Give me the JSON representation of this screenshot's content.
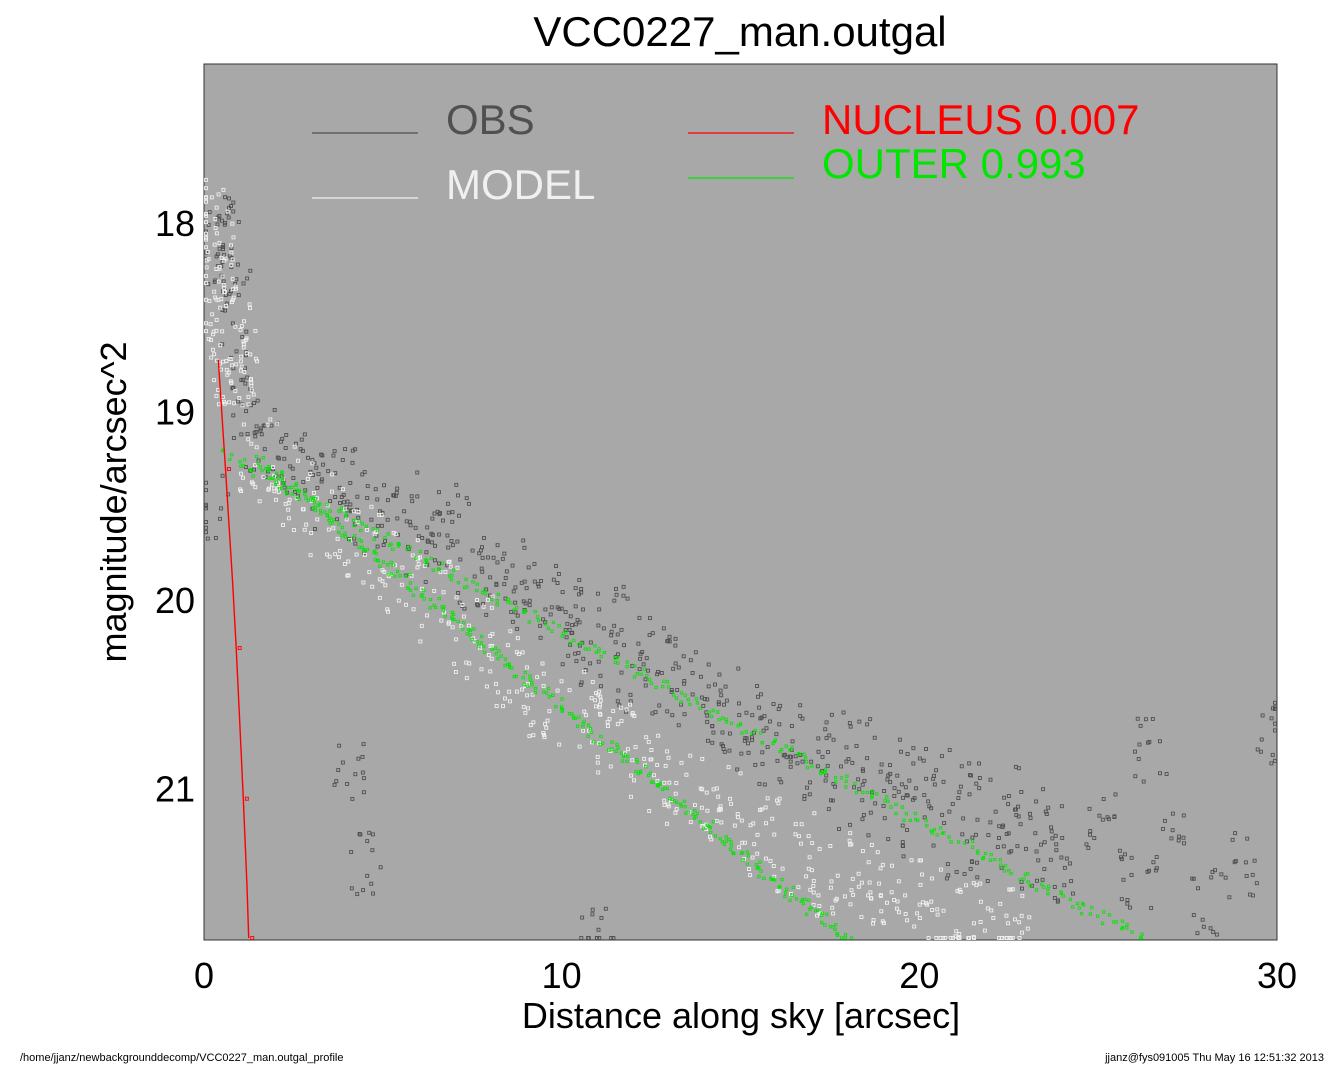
{
  "footer": {
    "path": "/home/jjanz/newbackgrounddecomp/VCC0227_man.outgal_profile",
    "stamp": "jjanz@fys091005  Thu May 16 12:51:32 2013"
  },
  "colors": {
    "plot_bg": "#a8a8a8",
    "obs": "#505050",
    "model": "#f0f0f0",
    "nucleus": "#ff0000",
    "outer": "#00e600"
  },
  "chart_data": {
    "type": "scatter",
    "title": "VCC0227_man.outgal",
    "xlabel": "Distance along sky [arcsec]",
    "ylabel": "magnitude/arcsec^2",
    "xlim": [
      0,
      30
    ],
    "ylim": [
      21.8,
      17.15
    ],
    "y_inverted": true,
    "x_ticks": [
      "0",
      "10",
      "20",
      "30"
    ],
    "y_ticks": [
      "18",
      "19",
      "20",
      "21"
    ],
    "grid": false,
    "legend": {
      "placement": "top",
      "items": [
        {
          "label": "OBS",
          "color": "#505050"
        },
        {
          "label": "MODEL",
          "color": "#f0f0f0"
        },
        {
          "label": "NUCLEUS  0.007",
          "color": "#ff0000"
        },
        {
          "label": "OUTER  0.993",
          "color": "#00e600"
        }
      ]
    },
    "series": [
      {
        "name": "OBS",
        "marker": "square",
        "points": [
          [
            0.35,
            18.05
          ],
          [
            0.5,
            18.0
          ],
          [
            0.6,
            18.3
          ],
          [
            0.8,
            18.25
          ],
          [
            1.0,
            18.7
          ],
          [
            1.2,
            19.0
          ],
          [
            0.25,
            19.5
          ],
          [
            1.5,
            19.15
          ],
          [
            2,
            19.2
          ],
          [
            2.5,
            19.3
          ],
          [
            3,
            19.25
          ],
          [
            3.5,
            19.45
          ],
          [
            4,
            19.35
          ],
          [
            4.5,
            19.6
          ],
          [
            5,
            19.55
          ],
          [
            5.5,
            19.45
          ],
          [
            6,
            19.75
          ],
          [
            6.5,
            19.7
          ],
          [
            7,
            19.55
          ],
          [
            7.5,
            19.9
          ],
          [
            8,
            19.8
          ],
          [
            8.5,
            19.85
          ],
          [
            9,
            20.05
          ],
          [
            9.5,
            19.95
          ],
          [
            10,
            20.2
          ],
          [
            10.5,
            20.05
          ],
          [
            11,
            20.3
          ],
          [
            11.5,
            20.1
          ],
          [
            12,
            20.45
          ],
          [
            12.5,
            20.25
          ],
          [
            13,
            20.5
          ],
          [
            13.5,
            20.35
          ],
          [
            14,
            20.6
          ],
          [
            14.5,
            20.5
          ],
          [
            15,
            20.75
          ],
          [
            15.5,
            20.6
          ],
          [
            16,
            20.85
          ],
          [
            16.5,
            20.7
          ],
          [
            17,
            20.95
          ],
          [
            17.5,
            20.75
          ],
          [
            18,
            21.05
          ],
          [
            18.5,
            20.8
          ],
          [
            19,
            21.1
          ],
          [
            19.5,
            20.9
          ],
          [
            20,
            21.2
          ],
          [
            20.5,
            20.95
          ],
          [
            21,
            21.3
          ],
          [
            21.5,
            21.0
          ],
          [
            22,
            21.35
          ],
          [
            22.5,
            21.05
          ],
          [
            23,
            21.4
          ],
          [
            23.5,
            21.15
          ],
          [
            24,
            21.45
          ],
          [
            25,
            21.2
          ],
          [
            26,
            21.5
          ],
          [
            27,
            21.3
          ],
          [
            28,
            21.6
          ],
          [
            29,
            21.4
          ],
          [
            29.9,
            20.7
          ],
          [
            26.5,
            20.8
          ],
          [
            4,
            20.9
          ],
          [
            4.5,
            21.4
          ],
          [
            11,
            21.8
          ]
        ]
      },
      {
        "name": "MODEL",
        "marker": "square",
        "points": [
          [
            0.25,
            17.95
          ],
          [
            0.4,
            18.2
          ],
          [
            0.55,
            18.4
          ],
          [
            0.7,
            18.55
          ],
          [
            0.85,
            18.75
          ],
          [
            1.0,
            18.9
          ],
          [
            1.5,
            19.25
          ],
          [
            2.5,
            19.4
          ],
          [
            3.5,
            19.55
          ],
          [
            4.5,
            19.7
          ],
          [
            5.5,
            19.85
          ],
          [
            6.5,
            20.0
          ],
          [
            7.5,
            20.2
          ],
          [
            8.5,
            20.35
          ],
          [
            9.5,
            20.5
          ],
          [
            10.5,
            20.6
          ],
          [
            11.5,
            20.75
          ],
          [
            12.5,
            20.9
          ],
          [
            13.5,
            21.0
          ],
          [
            14.5,
            21.1
          ],
          [
            15.5,
            21.25
          ],
          [
            16.5,
            21.35
          ],
          [
            17.5,
            21.45
          ],
          [
            18.5,
            21.5
          ],
          [
            19.5,
            21.6
          ],
          [
            20.5,
            21.65
          ],
          [
            21.5,
            21.7
          ],
          [
            22.5,
            21.75
          ]
        ]
      },
      {
        "name": "NUCLEUS  0.007",
        "marker": "line",
        "x": [
          0.4,
          0.6,
          0.8,
          0.9,
          1.0,
          1.1,
          1.2,
          1.25
        ],
        "y": [
          18.72,
          19.3,
          19.9,
          20.25,
          20.65,
          21.05,
          21.5,
          21.8
        ]
      },
      {
        "name": "OUTER  0.993",
        "marker": "dots",
        "bands": [
          {
            "x": [
              0.6,
              26.3
            ],
            "y_top": [
              19.22,
              21.8
            ],
            "y_bottom": [
              19.22,
              21.8
            ]
          },
          {
            "x": [
              1.5,
              18.0
            ],
            "y_top": [
              19.25,
              21.8
            ],
            "y_bottom": [
              19.25,
              21.8
            ]
          }
        ]
      }
    ]
  }
}
